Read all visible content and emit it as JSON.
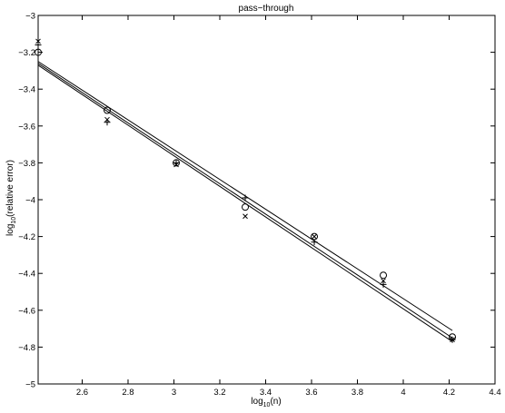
{
  "chart_data": {
    "type": "scatter",
    "title": "pass−through",
    "xlabel_main": "log",
    "xlabel_sub": "10",
    "xlabel_rest": "(n)",
    "ylabel_main": "log",
    "ylabel_sub": "10",
    "ylabel_rest": "(relative error)",
    "xlim": [
      2.408,
      4.4
    ],
    "ylim": [
      -5,
      -3
    ],
    "x_ticks": [
      2.6,
      2.8,
      3,
      3.2,
      3.4,
      3.6,
      3.8,
      4,
      4.2,
      4.4
    ],
    "x_tick_labels": [
      "2.6",
      "2.8",
      "3",
      "3.2",
      "3.4",
      "3.6",
      "3.8",
      "4",
      "4.2",
      "4.4"
    ],
    "y_ticks": [
      -5,
      -4.8,
      -4.6,
      -4.4,
      -4.2,
      -4,
      -3.8,
      -3.6,
      -3.4,
      -3.2,
      -3
    ],
    "y_tick_labels": [
      "−5",
      "−4.8",
      "−4.6",
      "−4.4",
      "−4.2",
      "−4",
      "−3.8",
      "−3.6",
      "−3.4",
      "−3.2",
      "−3"
    ],
    "grid": false,
    "series": [
      {
        "marker": "o",
        "x": [
          2.408,
          2.709,
          3.01,
          3.311,
          3.612,
          3.913,
          4.214
        ],
        "y": [
          -3.2,
          -3.515,
          -3.8,
          -4.04,
          -4.2,
          -4.41,
          -4.745
        ],
        "fit": [
          [
            2.408,
            -3.25
          ],
          [
            4.214,
            -4.71
          ]
        ]
      },
      {
        "marker": "x",
        "x": [
          2.408,
          2.709,
          3.01,
          3.311,
          3.612,
          3.913,
          4.214
        ],
        "y": [
          -3.14,
          -3.565,
          -3.81,
          -4.09,
          -4.2,
          -4.44,
          -4.76
        ],
        "fit": [
          [
            2.408,
            -3.26
          ],
          [
            4.214,
            -4.75
          ]
        ]
      },
      {
        "marker": "+",
        "x": [
          2.408,
          2.709,
          3.01,
          3.311,
          3.612,
          3.913,
          4.214
        ],
        "y": [
          -3.16,
          -3.58,
          -3.8,
          -3.99,
          -4.23,
          -4.46,
          -4.76
        ],
        "fit": [
          [
            2.408,
            -3.27
          ],
          [
            4.214,
            -4.77
          ]
        ]
      }
    ]
  }
}
